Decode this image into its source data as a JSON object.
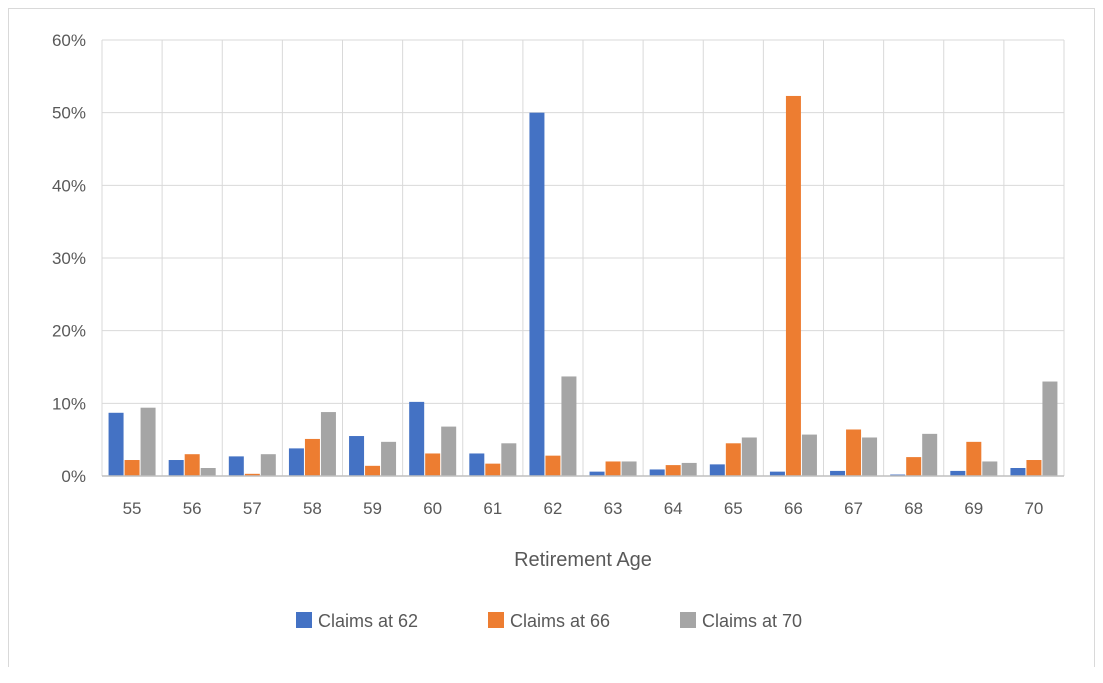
{
  "chart_data": {
    "type": "bar",
    "title": "",
    "xlabel": "Retirement Age",
    "ylabel": "",
    "ylim": [
      0,
      0.6
    ],
    "y_tick_values": [
      0,
      0.1,
      0.2,
      0.3,
      0.4,
      0.5,
      0.6
    ],
    "y_tick_labels": [
      "0%",
      "10%",
      "20%",
      "30%",
      "40%",
      "50%",
      "60%"
    ],
    "categories": [
      "55",
      "56",
      "57",
      "58",
      "59",
      "60",
      "61",
      "62",
      "63",
      "64",
      "65",
      "66",
      "67",
      "68",
      "69",
      "70"
    ],
    "series": [
      {
        "name": "Claims at 62",
        "color": "#4472c4",
        "values": [
          0.087,
          0.022,
          0.027,
          0.038,
          0.055,
          0.102,
          0.031,
          0.5,
          0.006,
          0.009,
          0.016,
          0.006,
          0.007,
          0.002,
          0.007,
          0.011
        ]
      },
      {
        "name": "Claims at 66",
        "color": "#ed7d31",
        "values": [
          0.022,
          0.03,
          0.003,
          0.051,
          0.014,
          0.031,
          0.017,
          0.028,
          0.02,
          0.015,
          0.045,
          0.523,
          0.064,
          0.026,
          0.047,
          0.022
        ]
      },
      {
        "name": "Claims at 70",
        "color": "#a5a5a5",
        "values": [
          0.094,
          0.011,
          0.03,
          0.088,
          0.047,
          0.068,
          0.045,
          0.137,
          0.02,
          0.018,
          0.053,
          0.057,
          0.053,
          0.058,
          0.02,
          0.13
        ]
      }
    ],
    "grid": true,
    "legend": "bottom-center",
    "gridline_color": "#d9d9d9",
    "axis_line_color": "#bfbfbf"
  }
}
